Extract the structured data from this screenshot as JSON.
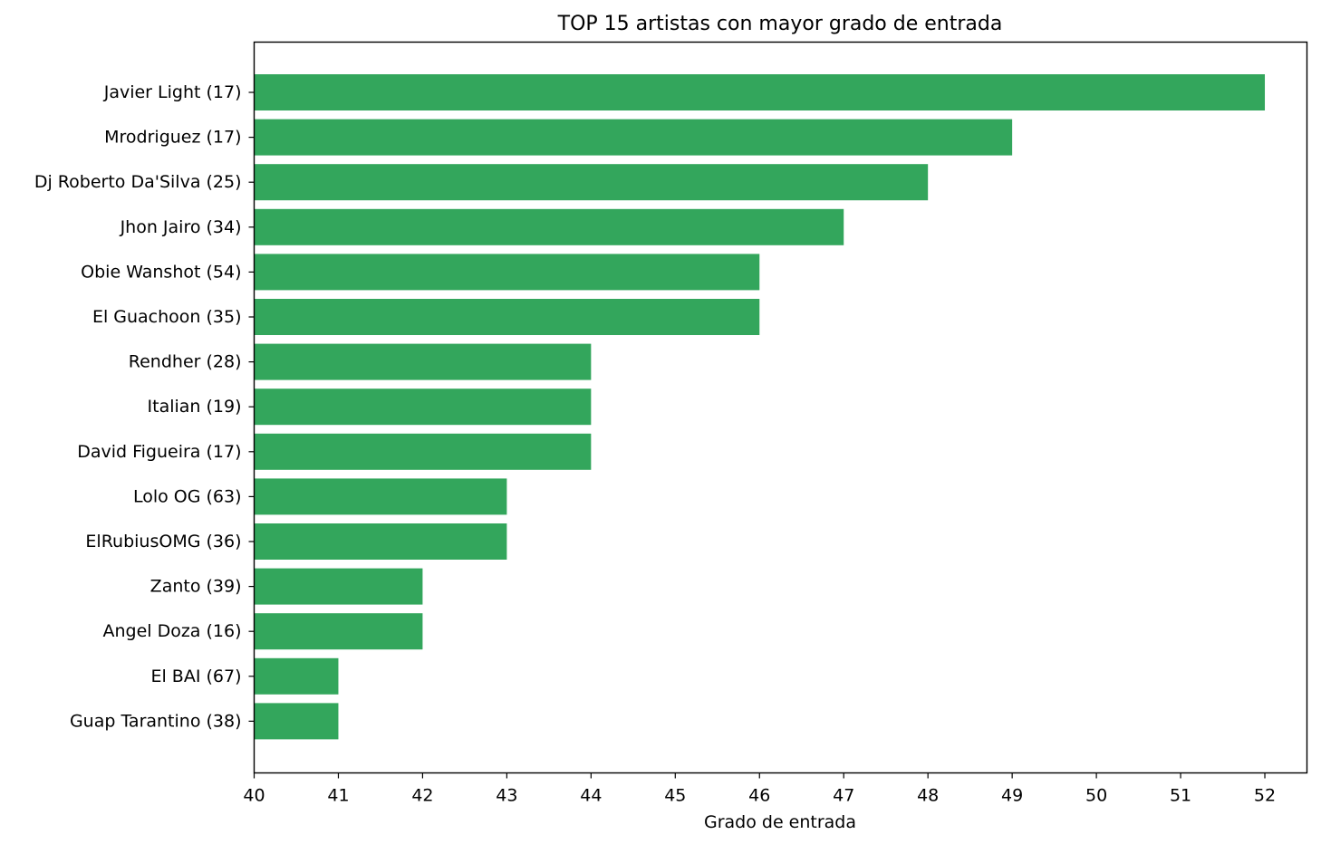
{
  "chart_data": {
    "type": "bar",
    "orientation": "horizontal",
    "title": "TOP 15 artistas con mayor grado de entrada",
    "xlabel": "Grado de entrada",
    "ylabel": "",
    "xlim": [
      40,
      52.5
    ],
    "xticks": [
      40,
      41,
      42,
      43,
      44,
      45,
      46,
      47,
      48,
      49,
      50,
      51,
      52
    ],
    "bar_color": "#33a65c",
    "grid": false,
    "categories": [
      "Javier Light (17)",
      "Mrodriguez (17)",
      "Dj Roberto Da'Silva (25)",
      "Jhon Jairo (34)",
      "Obie Wanshot (54)",
      "El Guachoon (35)",
      "Rendher (28)",
      "Italian (19)",
      "David Figueira (17)",
      "Lolo OG (63)",
      "ElRubiusOMG (36)",
      "Zanto (39)",
      "Angel Doza (16)",
      "El BAI (67)",
      "Guap Tarantino (38)"
    ],
    "values": [
      52,
      49,
      48,
      47,
      46,
      46,
      44,
      44,
      44,
      43,
      43,
      42,
      42,
      41,
      41
    ]
  }
}
